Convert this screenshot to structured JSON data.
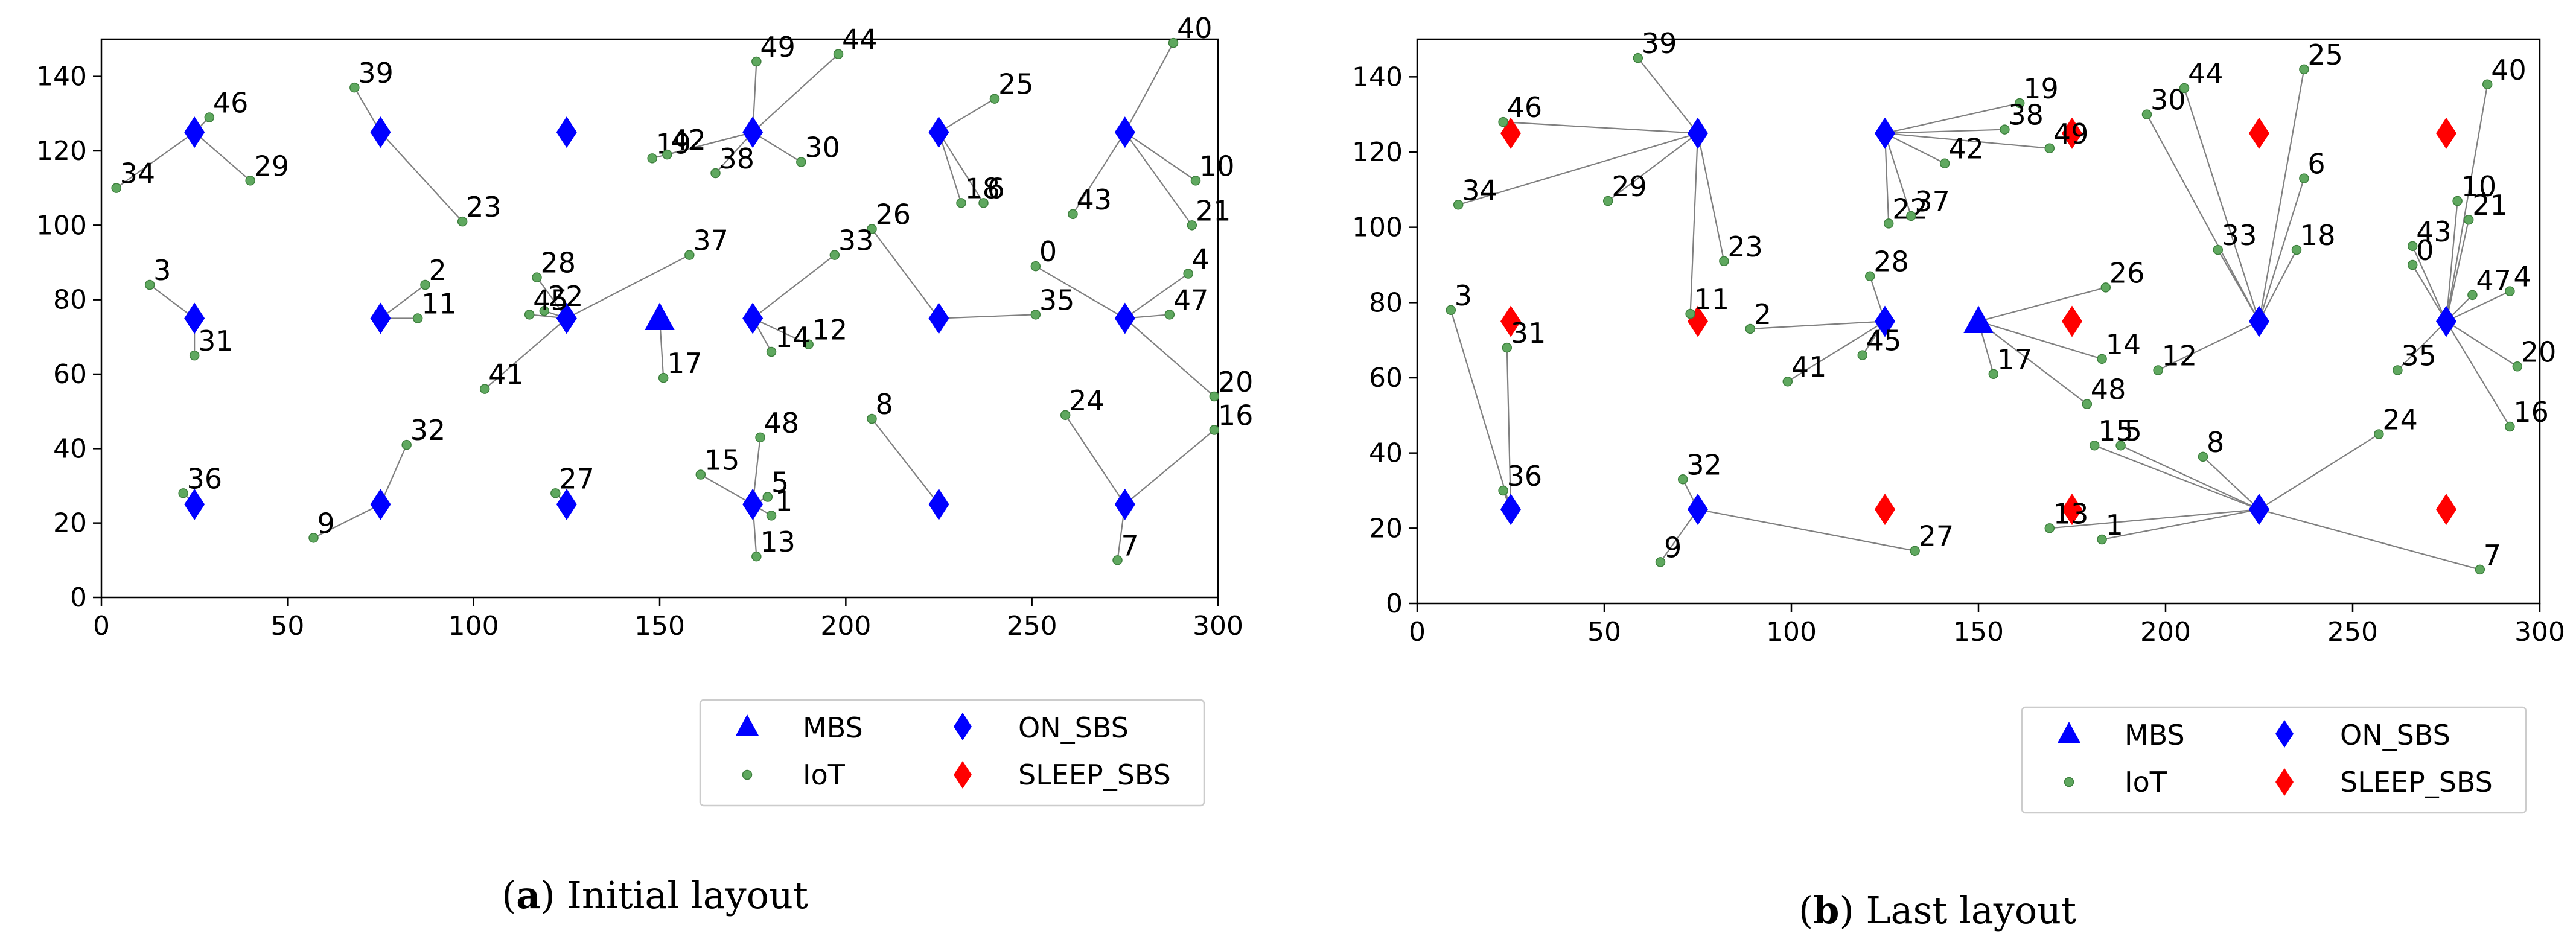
{
  "chart_data": [
    {
      "type": "scatter",
      "title": "",
      "caption_letter": "a",
      "caption_text": "Initial layout",
      "xlim": [
        0,
        300
      ],
      "ylim": [
        0,
        150
      ],
      "xticks": [
        0,
        50,
        100,
        150,
        200,
        250,
        300
      ],
      "yticks": [
        0,
        20,
        40,
        60,
        80,
        100,
        120,
        140
      ],
      "legend": {
        "placement": "lower-right, outside",
        "entries": [
          "MBS",
          "ON_SBS",
          "IoT",
          "SLEEP_SBS"
        ]
      },
      "mbs": [
        [
          150,
          75
        ]
      ],
      "on_sbs": [
        [
          25,
          125
        ],
        [
          75,
          125
        ],
        [
          125,
          125
        ],
        [
          175,
          125
        ],
        [
          225,
          125
        ],
        [
          275,
          125
        ],
        [
          25,
          75
        ],
        [
          75,
          75
        ],
        [
          125,
          75
        ],
        [
          175,
          75
        ],
        [
          225,
          75
        ],
        [
          275,
          75
        ],
        [
          25,
          25
        ],
        [
          75,
          25
        ],
        [
          125,
          25
        ],
        [
          175,
          25
        ],
        [
          225,
          25
        ],
        [
          275,
          25
        ]
      ],
      "sleep_sbs": [],
      "iot": [
        {
          "id": "0",
          "x": 251,
          "y": 89,
          "bs": [
            275,
            75
          ]
        },
        {
          "id": "1",
          "x": 180,
          "y": 22,
          "bs": [
            175,
            25
          ]
        },
        {
          "id": "2",
          "x": 87,
          "y": 84,
          "bs": [
            75,
            75
          ]
        },
        {
          "id": "3",
          "x": 13,
          "y": 84,
          "bs": [
            25,
            75
          ]
        },
        {
          "id": "4",
          "x": 292,
          "y": 87,
          "bs": [
            275,
            75
          ]
        },
        {
          "id": "5",
          "x": 179,
          "y": 27,
          "bs": [
            175,
            25
          ]
        },
        {
          "id": "6",
          "x": 237,
          "y": 106,
          "bs": [
            225,
            125
          ]
        },
        {
          "id": "7",
          "x": 273,
          "y": 10,
          "bs": [
            275,
            25
          ]
        },
        {
          "id": "8",
          "x": 207,
          "y": 48,
          "bs": [
            225,
            25
          ]
        },
        {
          "id": "9",
          "x": 57,
          "y": 16,
          "bs": [
            75,
            25
          ]
        },
        {
          "id": "10",
          "x": 294,
          "y": 112,
          "bs": [
            275,
            125
          ]
        },
        {
          "id": "11",
          "x": 85,
          "y": 75,
          "bs": [
            75,
            75
          ]
        },
        {
          "id": "12",
          "x": 190,
          "y": 68,
          "bs": [
            175,
            75
          ]
        },
        {
          "id": "13",
          "x": 176,
          "y": 11,
          "bs": [
            175,
            25
          ]
        },
        {
          "id": "14",
          "x": 180,
          "y": 66,
          "bs": [
            175,
            75
          ]
        },
        {
          "id": "15",
          "x": 161,
          "y": 33,
          "bs": [
            175,
            25
          ]
        },
        {
          "id": "16",
          "x": 299,
          "y": 45,
          "bs": [
            275,
            25
          ]
        },
        {
          "id": "17",
          "x": 151,
          "y": 59,
          "bs": [
            150,
            75
          ]
        },
        {
          "id": "18",
          "x": 231,
          "y": 106,
          "bs": [
            225,
            125
          ]
        },
        {
          "id": "19",
          "x": 148,
          "y": 118,
          "bs": [
            175,
            125
          ]
        },
        {
          "id": "20",
          "x": 299,
          "y": 54,
          "bs": [
            275,
            75
          ]
        },
        {
          "id": "21",
          "x": 293,
          "y": 100,
          "bs": [
            275,
            125
          ]
        },
        {
          "id": "22",
          "x": 119,
          "y": 77,
          "bs": [
            125,
            75
          ]
        },
        {
          "id": "23",
          "x": 97,
          "y": 101,
          "bs": [
            75,
            125
          ]
        },
        {
          "id": "24",
          "x": 259,
          "y": 49,
          "bs": [
            275,
            25
          ]
        },
        {
          "id": "25",
          "x": 240,
          "y": 134,
          "bs": [
            225,
            125
          ]
        },
        {
          "id": "26",
          "x": 207,
          "y": 99,
          "bs": [
            225,
            75
          ]
        },
        {
          "id": "27",
          "x": 122,
          "y": 28,
          "bs": [
            125,
            25
          ]
        },
        {
          "id": "28",
          "x": 117,
          "y": 86,
          "bs": [
            125,
            75
          ]
        },
        {
          "id": "29",
          "x": 40,
          "y": 112,
          "bs": [
            25,
            125
          ]
        },
        {
          "id": "30",
          "x": 188,
          "y": 117,
          "bs": [
            175,
            125
          ]
        },
        {
          "id": "31",
          "x": 25,
          "y": 65,
          "bs": [
            25,
            75
          ]
        },
        {
          "id": "32",
          "x": 82,
          "y": 41,
          "bs": [
            75,
            25
          ]
        },
        {
          "id": "33",
          "x": 197,
          "y": 92,
          "bs": [
            175,
            75
          ]
        },
        {
          "id": "34",
          "x": 4,
          "y": 110,
          "bs": [
            25,
            125
          ]
        },
        {
          "id": "35",
          "x": 251,
          "y": 76,
          "bs": [
            225,
            75
          ]
        },
        {
          "id": "36",
          "x": 22,
          "y": 28,
          "bs": [
            25,
            25
          ]
        },
        {
          "id": "37",
          "x": 158,
          "y": 92,
          "bs": [
            125,
            75
          ]
        },
        {
          "id": "38",
          "x": 165,
          "y": 114,
          "bs": [
            175,
            125
          ]
        },
        {
          "id": "39",
          "x": 68,
          "y": 137,
          "bs": [
            75,
            125
          ]
        },
        {
          "id": "40",
          "x": 288,
          "y": 149,
          "bs": [
            275,
            125
          ]
        },
        {
          "id": "41",
          "x": 103,
          "y": 56,
          "bs": [
            125,
            75
          ]
        },
        {
          "id": "42",
          "x": 152,
          "y": 119,
          "bs": [
            175,
            125
          ]
        },
        {
          "id": "43",
          "x": 261,
          "y": 103,
          "bs": [
            275,
            125
          ]
        },
        {
          "id": "44",
          "x": 198,
          "y": 146,
          "bs": [
            175,
            125
          ]
        },
        {
          "id": "45",
          "x": 115,
          "y": 76,
          "bs": [
            125,
            75
          ]
        },
        {
          "id": "46",
          "x": 29,
          "y": 129,
          "bs": [
            25,
            125
          ]
        },
        {
          "id": "47",
          "x": 287,
          "y": 76,
          "bs": [
            275,
            75
          ]
        },
        {
          "id": "48",
          "x": 177,
          "y": 43,
          "bs": [
            175,
            25
          ]
        },
        {
          "id": "49",
          "x": 176,
          "y": 144,
          "bs": [
            175,
            125
          ]
        }
      ]
    },
    {
      "type": "scatter",
      "title": "",
      "caption_letter": "b",
      "caption_text": "Last layout",
      "xlim": [
        0,
        300
      ],
      "ylim": [
        0,
        150
      ],
      "xticks": [
        0,
        50,
        100,
        150,
        200,
        250,
        300
      ],
      "yticks": [
        0,
        20,
        40,
        60,
        80,
        100,
        120,
        140
      ],
      "legend": {
        "placement": "lower-right, outside",
        "entries": [
          "MBS",
          "ON_SBS",
          "IoT",
          "SLEEP_SBS"
        ]
      },
      "mbs": [
        [
          150,
          75
        ]
      ],
      "on_sbs": [
        [
          75,
          125
        ],
        [
          125,
          125
        ],
        [
          225,
          75
        ],
        [
          275,
          75
        ],
        [
          25,
          25
        ],
        [
          75,
          25
        ],
        [
          125,
          75
        ],
        [
          225,
          25
        ]
      ],
      "sleep_sbs": [
        [
          25,
          125
        ],
        [
          175,
          125
        ],
        [
          225,
          125
        ],
        [
          275,
          125
        ],
        [
          25,
          75
        ],
        [
          75,
          75
        ],
        [
          175,
          75
        ],
        [
          125,
          25
        ],
        [
          175,
          25
        ],
        [
          275,
          25
        ]
      ],
      "iot": [
        {
          "id": "0",
          "x": 266,
          "y": 90,
          "bs": [
            275,
            75
          ]
        },
        {
          "id": "1",
          "x": 183,
          "y": 17,
          "bs": [
            225,
            25
          ]
        },
        {
          "id": "2",
          "x": 89,
          "y": 73,
          "bs": [
            125,
            75
          ]
        },
        {
          "id": "3",
          "x": 9,
          "y": 78,
          "bs": [
            25,
            25
          ]
        },
        {
          "id": "4",
          "x": 292,
          "y": 83,
          "bs": [
            275,
            75
          ]
        },
        {
          "id": "5",
          "x": 188,
          "y": 42,
          "bs": [
            225,
            25
          ]
        },
        {
          "id": "6",
          "x": 237,
          "y": 113,
          "bs": [
            225,
            75
          ]
        },
        {
          "id": "7",
          "x": 284,
          "y": 9,
          "bs": [
            225,
            25
          ]
        },
        {
          "id": "8",
          "x": 210,
          "y": 39,
          "bs": [
            225,
            25
          ]
        },
        {
          "id": "9",
          "x": 65,
          "y": 11,
          "bs": [
            75,
            25
          ]
        },
        {
          "id": "10",
          "x": 278,
          "y": 107,
          "bs": [
            275,
            75
          ]
        },
        {
          "id": "11",
          "x": 73,
          "y": 77,
          "bs": [
            75,
            125
          ]
        },
        {
          "id": "12",
          "x": 198,
          "y": 62,
          "bs": [
            225,
            75
          ]
        },
        {
          "id": "13",
          "x": 169,
          "y": 20,
          "bs": [
            225,
            25
          ]
        },
        {
          "id": "14",
          "x": 183,
          "y": 65,
          "bs": [
            150,
            75
          ]
        },
        {
          "id": "15",
          "x": 181,
          "y": 42,
          "bs": [
            225,
            25
          ]
        },
        {
          "id": "16",
          "x": 292,
          "y": 47,
          "bs": [
            275,
            75
          ]
        },
        {
          "id": "17",
          "x": 154,
          "y": 61,
          "bs": [
            150,
            75
          ]
        },
        {
          "id": "18",
          "x": 235,
          "y": 94,
          "bs": [
            225,
            75
          ]
        },
        {
          "id": "19",
          "x": 161,
          "y": 133,
          "bs": [
            125,
            125
          ]
        },
        {
          "id": "20",
          "x": 294,
          "y": 63,
          "bs": [
            275,
            75
          ]
        },
        {
          "id": "21",
          "x": 281,
          "y": 102,
          "bs": [
            275,
            75
          ]
        },
        {
          "id": "22",
          "x": 126,
          "y": 101,
          "bs": [
            125,
            125
          ]
        },
        {
          "id": "23",
          "x": 82,
          "y": 91,
          "bs": [
            75,
            125
          ]
        },
        {
          "id": "24",
          "x": 257,
          "y": 45,
          "bs": [
            225,
            25
          ]
        },
        {
          "id": "25",
          "x": 237,
          "y": 142,
          "bs": [
            225,
            75
          ]
        },
        {
          "id": "26",
          "x": 184,
          "y": 84,
          "bs": [
            150,
            75
          ]
        },
        {
          "id": "27",
          "x": 133,
          "y": 14,
          "bs": [
            75,
            25
          ]
        },
        {
          "id": "28",
          "x": 121,
          "y": 87,
          "bs": [
            125,
            75
          ]
        },
        {
          "id": "29",
          "x": 51,
          "y": 107,
          "bs": [
            75,
            125
          ]
        },
        {
          "id": "30",
          "x": 195,
          "y": 130,
          "bs": [
            225,
            75
          ]
        },
        {
          "id": "31",
          "x": 24,
          "y": 68,
          "bs": [
            25,
            25
          ]
        },
        {
          "id": "32",
          "x": 71,
          "y": 33,
          "bs": [
            75,
            25
          ]
        },
        {
          "id": "33",
          "x": 214,
          "y": 94,
          "bs": [
            225,
            75
          ]
        },
        {
          "id": "34",
          "x": 11,
          "y": 106,
          "bs": [
            75,
            125
          ]
        },
        {
          "id": "35",
          "x": 262,
          "y": 62,
          "bs": [
            275,
            75
          ]
        },
        {
          "id": "36",
          "x": 23,
          "y": 30,
          "bs": [
            25,
            25
          ]
        },
        {
          "id": "37",
          "x": 132,
          "y": 103,
          "bs": [
            125,
            125
          ]
        },
        {
          "id": "38",
          "x": 157,
          "y": 126,
          "bs": [
            125,
            125
          ]
        },
        {
          "id": "39",
          "x": 59,
          "y": 145,
          "bs": [
            75,
            125
          ]
        },
        {
          "id": "40",
          "x": 286,
          "y": 138,
          "bs": [
            275,
            75
          ]
        },
        {
          "id": "41",
          "x": 99,
          "y": 59,
          "bs": [
            125,
            75
          ]
        },
        {
          "id": "42",
          "x": 141,
          "y": 117,
          "bs": [
            125,
            125
          ]
        },
        {
          "id": "43",
          "x": 266,
          "y": 95,
          "bs": [
            275,
            75
          ]
        },
        {
          "id": "44",
          "x": 205,
          "y": 137,
          "bs": [
            225,
            75
          ]
        },
        {
          "id": "45",
          "x": 119,
          "y": 66,
          "bs": [
            125,
            75
          ]
        },
        {
          "id": "46",
          "x": 23,
          "y": 128,
          "bs": [
            75,
            125
          ]
        },
        {
          "id": "47",
          "x": 282,
          "y": 82,
          "bs": [
            275,
            75
          ]
        },
        {
          "id": "48",
          "x": 179,
          "y": 53,
          "bs": [
            150,
            75
          ]
        },
        {
          "id": "49",
          "x": 169,
          "y": 121,
          "bs": [
            125,
            125
          ]
        }
      ]
    }
  ],
  "legend_labels": {
    "mbs": "MBS",
    "on_sbs": "ON_SBS",
    "iot": "IoT",
    "sleep_sbs": "SLEEP_SBS"
  },
  "colors": {
    "mbs": "#0000ff",
    "on_sbs": "#0000ff",
    "iot": "#5fa85f",
    "sleep_sbs": "#ff0000",
    "link": "#808080"
  }
}
